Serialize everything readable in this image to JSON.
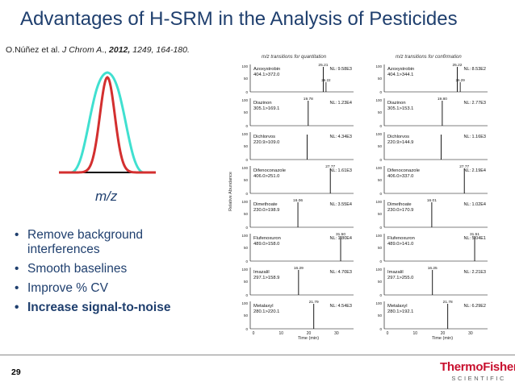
{
  "title": "Advantages of H-SRM in the Analysis of Pesticides",
  "citation": {
    "authors": "O.Núñez et al. ",
    "journal": "J Chrom A",
    "sep": ".,",
    "year": "2012,",
    "rest": " 1249, 164-180."
  },
  "peak_axis_label": "m/z",
  "bullets": [
    {
      "text": "Remove background interferences"
    },
    {
      "text": "Smooth baselines"
    },
    {
      "text": "Improve % CV"
    },
    {
      "text": "Increase signal-to-noise",
      "bold": true
    }
  ],
  "page_number": "29",
  "logo": {
    "line1": "ThermoFisher",
    "line2": "SCIENTIFIC"
  },
  "colors": {
    "title": "#1f3f6e",
    "narrow_peak": "#d32f2f",
    "wide_peak": "#40e0d0",
    "logo": "#c8102e"
  },
  "panels": {
    "left_header": "m/z transitions for quantitation",
    "right_header": "m/z transitions for confirmation",
    "y_axis_label": "Relative Abundance",
    "x_axis_label": "Time (min)",
    "x_ticks": [
      "0",
      "10",
      "20",
      "30"
    ],
    "y_ticks": [
      "100",
      "50",
      "0"
    ],
    "rows": [
      {
        "compound": "Azoxystrobin",
        "left_transition": "404.1>372.0",
        "left_nl": "NL: 9.58E3",
        "left_rt": "25.21",
        "right_transition": "404.1>344.1",
        "right_nl": "NL: 8.53E2",
        "right_rt": "25.22",
        "left_rt2": "26.22",
        "right_rt2": "26.29"
      },
      {
        "compound": "Diazinon",
        "left_transition": "305.1>169.1",
        "left_nl": "NL: 1.23E4",
        "left_rt": "19.78",
        "right_transition": "305.1>153.1",
        "right_nl": "NL: 2.77E3",
        "right_rt": "19.80"
      },
      {
        "compound": "Dichlorvos",
        "left_transition": "220.9>109.0",
        "left_nl": "NL: 4.34E3",
        "left_rt": "",
        "right_transition": "220.9>144.9",
        "right_nl": "NL: 1.16E3",
        "right_rt": ""
      },
      {
        "compound": "Difenoconazole",
        "left_transition": "406.0>251.0",
        "left_nl": "NL: 1.61E3",
        "left_rt": "27.77",
        "right_transition": "406.0>337.0",
        "right_nl": "NL: 2.19E4",
        "right_rt": "27.77"
      },
      {
        "compound": "Dimethoate",
        "left_transition": "230.0>198.9",
        "left_nl": "NL: 3.55E4",
        "left_rt": "16.06",
        "right_transition": "230.0>170.9",
        "right_nl": "NL: 1.02E4",
        "right_rt": "16.01"
      },
      {
        "compound": "Flufenoxuron",
        "left_transition": "489.0>158.0",
        "left_nl": "NL: 1.80E4",
        "left_rt": "31.50",
        "right_transition": "489.0>141.0",
        "right_nl": "NL: 5.04E1",
        "right_rt": "31.51"
      },
      {
        "compound": "Imazalil",
        "left_transition": "297.1>158.9",
        "left_nl": "NL: 4.70E3",
        "left_rt": "16.29",
        "right_transition": "297.1>255.0",
        "right_nl": "NL: 2.21E3",
        "right_rt": "16.25"
      },
      {
        "compound": "Metalaxyl",
        "left_transition": "280.1>220.1",
        "left_nl": "NL: 4.54E3",
        "left_rt": "21.79",
        "right_transition": "280.1>192.1",
        "right_nl": "NL: 6.29E2",
        "right_rt": "21.78"
      }
    ]
  }
}
